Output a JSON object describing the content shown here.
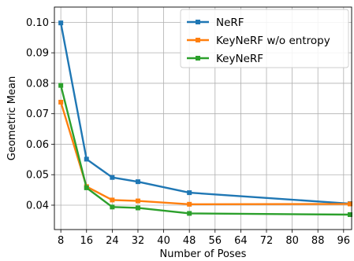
{
  "chart_data": {
    "type": "line",
    "xlabel": "Number of Poses",
    "ylabel": "Geometric Mean",
    "xlim": [
      6,
      98.5
    ],
    "ylim": [
      0.032,
      0.105
    ],
    "xticks": [
      8,
      16,
      24,
      32,
      40,
      48,
      56,
      64,
      72,
      80,
      88,
      96
    ],
    "yticks": [
      0.04,
      0.05,
      0.06,
      0.07,
      0.08,
      0.09,
      0.1
    ],
    "ytick_labels": [
      "0.04",
      "0.05",
      "0.06",
      "0.07",
      "0.08",
      "0.09",
      "0.10"
    ],
    "grid": true,
    "legend_position": "upper right",
    "series": [
      {
        "name": "NeRF",
        "color": "#1f77b4",
        "marker": "square",
        "x": [
          8,
          16,
          24,
          32,
          48,
          98
        ],
        "y": [
          0.0998,
          0.0551,
          0.0491,
          0.0477,
          0.0441,
          0.0405
        ]
      },
      {
        "name": "KeyNeRF w/o entropy",
        "color": "#ff7f0e",
        "marker": "square",
        "x": [
          8,
          16,
          24,
          32,
          48,
          98
        ],
        "y": [
          0.0738,
          0.0461,
          0.0417,
          0.0414,
          0.0403,
          0.0404
        ]
      },
      {
        "name": "KeyNeRF",
        "color": "#2ca02c",
        "marker": "square",
        "x": [
          8,
          16,
          24,
          32,
          48,
          98
        ],
        "y": [
          0.0793,
          0.0457,
          0.0394,
          0.0391,
          0.0373,
          0.0369
        ]
      }
    ]
  }
}
